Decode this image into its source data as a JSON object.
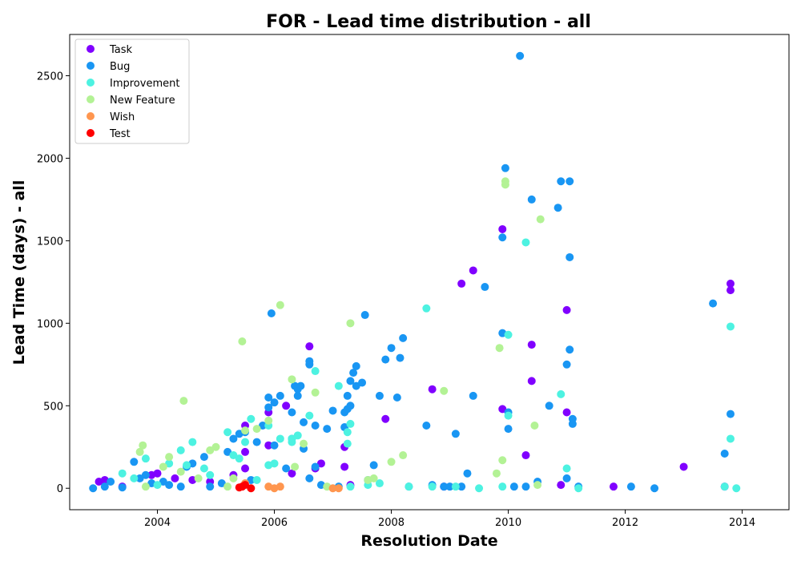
{
  "chart_data": {
    "type": "scatter",
    "title": "FOR - Lead time distribution - all",
    "xlabel": "Resolution Date",
    "ylabel": "Lead Time (days) - all",
    "xlim": [
      2002.5,
      2014.8
    ],
    "ylim": [
      -130,
      2750
    ],
    "x_ticks": [
      2004,
      2006,
      2008,
      2010,
      2012,
      2014
    ],
    "y_ticks": [
      0,
      500,
      1000,
      1500,
      2000,
      2500
    ],
    "legend_position": "top-left",
    "grid": false,
    "series": [
      {
        "name": "Task",
        "color": "#8000ff",
        "points": [
          [
            2003.0,
            40
          ],
          [
            2003.1,
            50
          ],
          [
            2003.4,
            10
          ],
          [
            2003.9,
            80
          ],
          [
            2004.0,
            90
          ],
          [
            2004.3,
            60
          ],
          [
            2004.6,
            50
          ],
          [
            2004.9,
            40
          ],
          [
            2005.3,
            80
          ],
          [
            2005.5,
            380
          ],
          [
            2005.5,
            220
          ],
          [
            2005.5,
            120
          ],
          [
            2005.9,
            460
          ],
          [
            2005.9,
            260
          ],
          [
            2006.2,
            500
          ],
          [
            2006.3,
            90
          ],
          [
            2006.6,
            860
          ],
          [
            2006.7,
            120
          ],
          [
            2006.8,
            150
          ],
          [
            2007.2,
            130
          ],
          [
            2007.2,
            250
          ],
          [
            2007.3,
            20
          ],
          [
            2007.9,
            420
          ],
          [
            2008.7,
            600
          ],
          [
            2008.9,
            10
          ],
          [
            2009.2,
            1240
          ],
          [
            2009.4,
            1320
          ],
          [
            2009.9,
            480
          ],
          [
            2009.9,
            1570
          ],
          [
            2010.3,
            200
          ],
          [
            2010.4,
            870
          ],
          [
            2010.4,
            650
          ],
          [
            2010.9,
            20
          ],
          [
            2011.0,
            460
          ],
          [
            2011.0,
            1080
          ],
          [
            2011.8,
            10
          ],
          [
            2013.0,
            130
          ],
          [
            2013.7,
            10
          ],
          [
            2013.8,
            1240
          ],
          [
            2013.8,
            1200
          ]
        ]
      },
      {
        "name": "Bug",
        "color": "#1996f3",
        "points": [
          [
            2002.9,
            0
          ],
          [
            2003.1,
            10
          ],
          [
            2003.2,
            40
          ],
          [
            2003.4,
            5
          ],
          [
            2003.6,
            160
          ],
          [
            2003.7,
            60
          ],
          [
            2003.8,
            80
          ],
          [
            2003.9,
            30
          ],
          [
            2004.1,
            40
          ],
          [
            2004.2,
            20
          ],
          [
            2004.4,
            10
          ],
          [
            2004.5,
            130
          ],
          [
            2004.6,
            150
          ],
          [
            2004.8,
            190
          ],
          [
            2004.9,
            10
          ],
          [
            2005.1,
            30
          ],
          [
            2005.2,
            220
          ],
          [
            2005.3,
            300
          ],
          [
            2005.4,
            330
          ],
          [
            2005.5,
            340
          ],
          [
            2005.6,
            50
          ],
          [
            2005.7,
            280
          ],
          [
            2005.8,
            380
          ],
          [
            2005.9,
            490
          ],
          [
            2005.9,
            550
          ],
          [
            2005.95,
            1060
          ],
          [
            2006.0,
            260
          ],
          [
            2006.0,
            520
          ],
          [
            2006.1,
            560
          ],
          [
            2006.2,
            120
          ],
          [
            2006.3,
            300
          ],
          [
            2006.3,
            460
          ],
          [
            2006.35,
            620
          ],
          [
            2006.4,
            600
          ],
          [
            2006.4,
            560
          ],
          [
            2006.45,
            620
          ],
          [
            2006.5,
            400
          ],
          [
            2006.5,
            240
          ],
          [
            2006.6,
            750
          ],
          [
            2006.6,
            770
          ],
          [
            2006.6,
            60
          ],
          [
            2006.7,
            130
          ],
          [
            2006.7,
            380
          ],
          [
            2006.8,
            20
          ],
          [
            2006.9,
            360
          ],
          [
            2007.0,
            470
          ],
          [
            2007.1,
            10
          ],
          [
            2007.2,
            370
          ],
          [
            2007.2,
            460
          ],
          [
            2007.25,
            480
          ],
          [
            2007.25,
            560
          ],
          [
            2007.3,
            650
          ],
          [
            2007.3,
            500
          ],
          [
            2007.35,
            700
          ],
          [
            2007.4,
            620
          ],
          [
            2007.4,
            740
          ],
          [
            2007.5,
            640
          ],
          [
            2007.55,
            1050
          ],
          [
            2007.6,
            50
          ],
          [
            2007.7,
            140
          ],
          [
            2007.8,
            560
          ],
          [
            2007.9,
            780
          ],
          [
            2008.0,
            850
          ],
          [
            2008.1,
            550
          ],
          [
            2008.15,
            790
          ],
          [
            2008.2,
            910
          ],
          [
            2008.3,
            10
          ],
          [
            2008.6,
            380
          ],
          [
            2008.7,
            20
          ],
          [
            2008.9,
            10
          ],
          [
            2009.0,
            10
          ],
          [
            2009.1,
            330
          ],
          [
            2009.2,
            10
          ],
          [
            2009.3,
            90
          ],
          [
            2009.4,
            560
          ],
          [
            2009.6,
            1220
          ],
          [
            2009.9,
            1520
          ],
          [
            2009.9,
            940
          ],
          [
            2009.95,
            1940
          ],
          [
            2010.0,
            360
          ],
          [
            2010.0,
            460
          ],
          [
            2010.1,
            10
          ],
          [
            2010.2,
            2620
          ],
          [
            2010.3,
            10
          ],
          [
            2010.4,
            1750
          ],
          [
            2010.5,
            40
          ],
          [
            2010.7,
            500
          ],
          [
            2010.85,
            1700
          ],
          [
            2010.9,
            1860
          ],
          [
            2011.0,
            60
          ],
          [
            2011.0,
            750
          ],
          [
            2011.05,
            1860
          ],
          [
            2011.05,
            1400
          ],
          [
            2011.05,
            840
          ],
          [
            2011.1,
            420
          ],
          [
            2011.1,
            390
          ],
          [
            2011.2,
            10
          ],
          [
            2012.1,
            10
          ],
          [
            2012.5,
            0
          ],
          [
            2013.5,
            1120
          ],
          [
            2013.7,
            210
          ],
          [
            2013.8,
            450
          ]
        ]
      },
      {
        "name": "Improvement",
        "color": "#4df2e1",
        "points": [
          [
            2003.4,
            90
          ],
          [
            2003.6,
            60
          ],
          [
            2003.8,
            180
          ],
          [
            2004.0,
            20
          ],
          [
            2004.2,
            150
          ],
          [
            2004.4,
            230
          ],
          [
            2004.5,
            140
          ],
          [
            2004.6,
            280
          ],
          [
            2004.8,
            120
          ],
          [
            2004.9,
            80
          ],
          [
            2005.2,
            340
          ],
          [
            2005.3,
            200
          ],
          [
            2005.4,
            180
          ],
          [
            2005.5,
            280
          ],
          [
            2005.6,
            420
          ],
          [
            2005.7,
            50
          ],
          [
            2005.9,
            380
          ],
          [
            2005.9,
            140
          ],
          [
            2006.0,
            150
          ],
          [
            2006.1,
            300
          ],
          [
            2006.3,
            300
          ],
          [
            2006.3,
            280
          ],
          [
            2006.4,
            320
          ],
          [
            2006.6,
            440
          ],
          [
            2006.7,
            710
          ],
          [
            2007.1,
            620
          ],
          [
            2007.3,
            10
          ],
          [
            2007.3,
            390
          ],
          [
            2007.25,
            340
          ],
          [
            2007.25,
            270
          ],
          [
            2007.6,
            20
          ],
          [
            2007.8,
            30
          ],
          [
            2008.3,
            10
          ],
          [
            2008.6,
            1090
          ],
          [
            2008.7,
            10
          ],
          [
            2009.1,
            10
          ],
          [
            2009.5,
            0
          ],
          [
            2009.9,
            10
          ],
          [
            2010.0,
            440
          ],
          [
            2010.0,
            930
          ],
          [
            2010.3,
            1490
          ],
          [
            2010.9,
            570
          ],
          [
            2011.0,
            120
          ],
          [
            2011.2,
            0
          ],
          [
            2013.7,
            10
          ],
          [
            2013.8,
            300
          ],
          [
            2013.8,
            980
          ],
          [
            2013.9,
            0
          ]
        ]
      },
      {
        "name": "New Feature",
        "color": "#b3f295",
        "points": [
          [
            2003.7,
            220
          ],
          [
            2003.75,
            260
          ],
          [
            2003.8,
            10
          ],
          [
            2004.1,
            130
          ],
          [
            2004.2,
            190
          ],
          [
            2004.4,
            100
          ],
          [
            2004.45,
            530
          ],
          [
            2004.7,
            60
          ],
          [
            2004.9,
            230
          ],
          [
            2005.0,
            250
          ],
          [
            2005.2,
            10
          ],
          [
            2005.3,
            60
          ],
          [
            2005.45,
            890
          ],
          [
            2005.5,
            350
          ],
          [
            2005.7,
            360
          ],
          [
            2005.9,
            410
          ],
          [
            2006.1,
            1110
          ],
          [
            2006.3,
            660
          ],
          [
            2006.35,
            130
          ],
          [
            2006.5,
            270
          ],
          [
            2006.7,
            580
          ],
          [
            2006.9,
            10
          ],
          [
            2007.3,
            1000
          ],
          [
            2007.6,
            50
          ],
          [
            2007.7,
            60
          ],
          [
            2008.0,
            160
          ],
          [
            2008.2,
            200
          ],
          [
            2008.9,
            590
          ],
          [
            2009.8,
            90
          ],
          [
            2009.85,
            850
          ],
          [
            2009.9,
            170
          ],
          [
            2009.95,
            1860
          ],
          [
            2009.95,
            1840
          ],
          [
            2010.45,
            380
          ],
          [
            2010.5,
            20
          ],
          [
            2010.55,
            1630
          ]
        ]
      },
      {
        "name": "Wish",
        "color": "#ff964f",
        "points": [
          [
            2005.5,
            30
          ],
          [
            2005.9,
            10
          ],
          [
            2006.0,
            0
          ],
          [
            2006.1,
            10
          ],
          [
            2007.0,
            0
          ],
          [
            2007.1,
            0
          ]
        ]
      },
      {
        "name": "Test",
        "color": "#ff0000",
        "points": [
          [
            2005.4,
            5
          ],
          [
            2005.45,
            10
          ],
          [
            2005.5,
            20
          ],
          [
            2005.6,
            0
          ]
        ]
      }
    ]
  }
}
